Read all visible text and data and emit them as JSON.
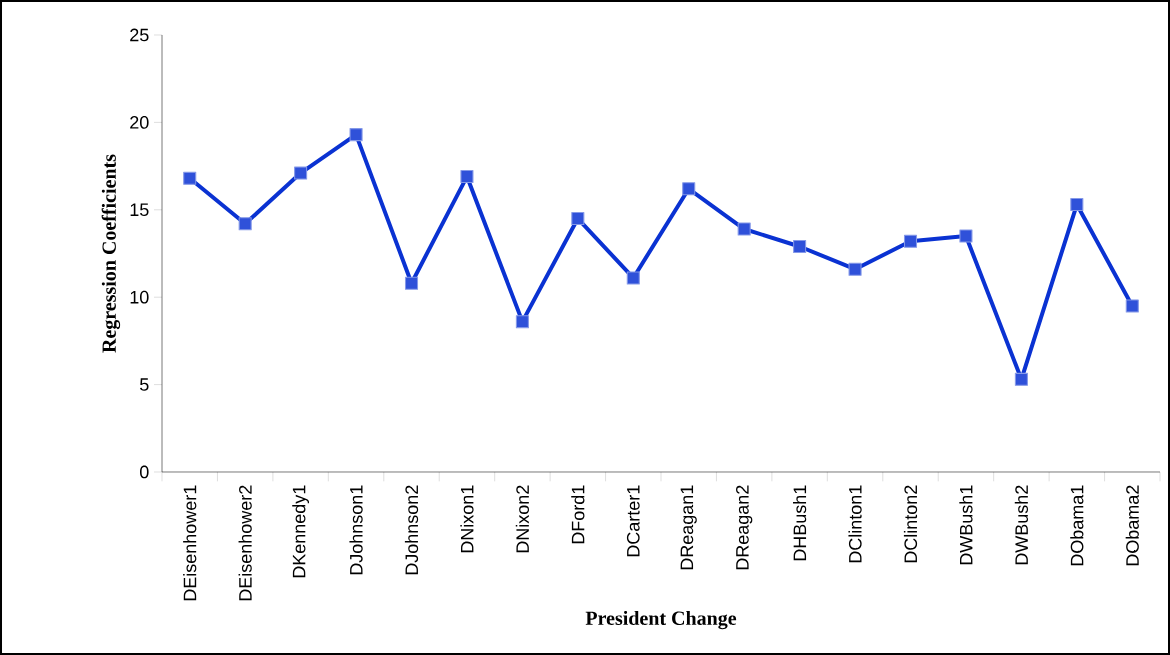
{
  "chart_data": {
    "type": "line",
    "xlabel": "President Change",
    "ylabel": "Regression Coefficients",
    "categories": [
      "DEisenhower1",
      "DEisenhower2",
      "DKennedy1",
      "DJohnson1",
      "DJohnson2",
      "DNixon1",
      "DNixon2",
      "DFord1",
      "DCarter1",
      "DReagan1",
      "DReagan2",
      "DHBush1",
      "DClinton1",
      "DClinton2",
      "DWBush1",
      "DWBush2",
      "DObama1",
      "DObama2"
    ],
    "series": [
      {
        "color": "#0a32d2",
        "values": [
          16.8,
          14.2,
          17.1,
          19.3,
          10.8,
          16.9,
          8.6,
          14.5,
          11.1,
          16.2,
          13.9,
          12.9,
          11.6,
          13.2,
          13.5,
          5.3,
          15.3,
          9.5
        ]
      }
    ],
    "ylim": [
      0,
      25
    ],
    "yticks": [
      0,
      5,
      10,
      15,
      20,
      25
    ],
    "marker": "square",
    "line_style": "solid",
    "grid": false
  }
}
